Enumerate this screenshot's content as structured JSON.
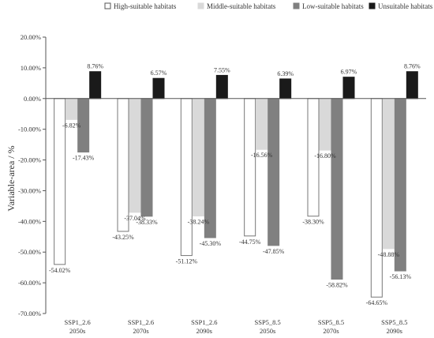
{
  "chart_data": {
    "type": "bar",
    "ylabel": "Variable-area / %",
    "ylim": [
      -70,
      20
    ],
    "yticks": [
      20,
      10,
      0,
      -10,
      -20,
      -30,
      -40,
      -50,
      -60,
      -70
    ],
    "ytick_labels": [
      "20.00%",
      "10.00%",
      "0.00%",
      "-10.00%",
      "-20.00%",
      "-30.00%",
      "-40.00%",
      "-50.00%",
      "-60.00%",
      "-70.00%"
    ],
    "categories": [
      {
        "line1": "SSP1_2.6",
        "line2": "2050s"
      },
      {
        "line1": "SSP1_2.6",
        "line2": "2070s"
      },
      {
        "line1": "SSP1_2.6",
        "line2": "2090s"
      },
      {
        "line1": "SSP5_8.5",
        "line2": "2050s"
      },
      {
        "line1": "SSP5_8.5",
        "line2": "2070s"
      },
      {
        "line1": "SSP5_8.5",
        "line2": "2090s"
      }
    ],
    "legend_position": "top-right",
    "series": [
      {
        "name": "High-suitable habitats",
        "fill": "#ffffff",
        "stroke": "#777777",
        "values": [
          -54.02,
          -43.25,
          -51.12,
          -44.75,
          -38.3,
          -64.65
        ],
        "labels": [
          "-54.02%",
          "-43.25%",
          "-51.12%",
          "-44.75%",
          "-38.30%",
          "-64.65%"
        ]
      },
      {
        "name": "Middle-suitable habitats",
        "fill": "#d9d9d9",
        "stroke": "#d9d9d9",
        "values": [
          -6.82,
          -37.04,
          -38.24,
          -16.56,
          -16.8,
          -48.88
        ],
        "labels": [
          "-6.82%",
          "-37.04%",
          "-38.24%",
          "-16.56%",
          "-16.80%",
          "-48.88%"
        ]
      },
      {
        "name": "Low-suitable habitats",
        "fill": "#808080",
        "stroke": "#808080",
        "values": [
          -17.43,
          -38.33,
          -45.3,
          -47.85,
          -58.82,
          -56.13
        ],
        "labels": [
          "-17.43%",
          "-38.33%",
          "-45.30%",
          "-47.85%",
          "-58.82%",
          "-56.13%"
        ]
      },
      {
        "name": "Unsuitable habitats",
        "fill": "#1a1a1a",
        "stroke": "#1a1a1a",
        "values": [
          8.76,
          6.57,
          7.55,
          6.39,
          6.97,
          8.76
        ],
        "labels": [
          "8.76%",
          "6.57%",
          "7.55%",
          "6.39%",
          "6.97%",
          "8.76%"
        ]
      }
    ]
  }
}
